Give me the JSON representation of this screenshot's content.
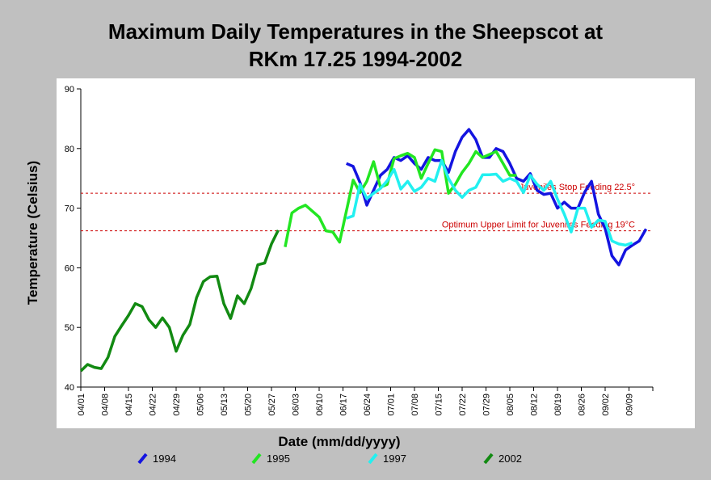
{
  "chart_data": {
    "type": "line",
    "title": "Maximum Daily Temperatures in the Sheepscot at",
    "subtitle": "RKm 17.25 1994-2002",
    "x_label": "Date (mm/dd/yyyy)",
    "y_label": "Temperature (Celsius)",
    "x": [
      0,
      2,
      4,
      6,
      8,
      10,
      12,
      14,
      16,
      18,
      20,
      22,
      24,
      26,
      28,
      30,
      32,
      34,
      36,
      38,
      40,
      42,
      44,
      46,
      48,
      50,
      52,
      54,
      56,
      58,
      60,
      62,
      64,
      66,
      68,
      70,
      72,
      74,
      76,
      78,
      80,
      82,
      84,
      86,
      88,
      90,
      92,
      94,
      96,
      98,
      100,
      102,
      104,
      106,
      108,
      110,
      112,
      114,
      116,
      118,
      120,
      122,
      124,
      126,
      128,
      130,
      132,
      134,
      136,
      138,
      140,
      142,
      144,
      146,
      148,
      150,
      152,
      154,
      156,
      158,
      160,
      162,
      164,
      166
    ],
    "xlim": [
      0,
      168
    ],
    "xticks": [
      {
        "value": 0,
        "label": "04/01"
      },
      {
        "value": 7,
        "label": "04/08"
      },
      {
        "value": 14,
        "label": "04/15"
      },
      {
        "value": 21,
        "label": "04/22"
      },
      {
        "value": 28,
        "label": "04/29"
      },
      {
        "value": 35,
        "label": "05/06"
      },
      {
        "value": 42,
        "label": "05/13"
      },
      {
        "value": 49,
        "label": "05/20"
      },
      {
        "value": 56,
        "label": "05/27"
      },
      {
        "value": 63,
        "label": "06/03"
      },
      {
        "value": 70,
        "label": "06/10"
      },
      {
        "value": 77,
        "label": "06/17"
      },
      {
        "value": 84,
        "label": "06/24"
      },
      {
        "value": 91,
        "label": "07/01"
      },
      {
        "value": 98,
        "label": "07/08"
      },
      {
        "value": 105,
        "label": "07/15"
      },
      {
        "value": 112,
        "label": "07/22"
      },
      {
        "value": 119,
        "label": "07/29"
      },
      {
        "value": 126,
        "label": "08/05"
      },
      {
        "value": 133,
        "label": "08/12"
      },
      {
        "value": 140,
        "label": "08/19"
      },
      {
        "value": 147,
        "label": "08/26"
      },
      {
        "value": 154,
        "label": "09/02"
      },
      {
        "value": 161,
        "label": "09/09"
      }
    ],
    "ylim": [
      40,
      90
    ],
    "yticks": [
      40,
      50,
      60,
      70,
      80,
      90
    ],
    "grid": false,
    "reference_lines": [
      {
        "value": 72.5,
        "label": "Juveniles Stop Feeding 22.5°",
        "color": "#cc0000"
      },
      {
        "value": 66.2,
        "label": "Optimum Upper Limit for Juveniles Feeding 19°C",
        "color": "#cc0000"
      }
    ],
    "series": [
      {
        "name": "1994",
        "color": "#1414e0",
        "values": [
          null,
          null,
          null,
          null,
          null,
          null,
          null,
          null,
          null,
          null,
          null,
          null,
          null,
          null,
          null,
          null,
          null,
          null,
          null,
          null,
          null,
          null,
          null,
          null,
          null,
          null,
          null,
          null,
          null,
          null,
          null,
          null,
          null,
          null,
          null,
          null,
          null,
          null,
          null,
          77.5,
          77,
          74.3,
          70.5,
          73,
          75.5,
          76.5,
          78.5,
          78,
          78.8,
          77.5,
          76.5,
          78.5,
          78,
          78,
          76,
          79.5,
          81.9,
          83.2,
          81.5,
          78.5,
          78.5,
          80,
          79.5,
          77.5,
          75,
          74.5,
          75.8,
          73,
          72.3,
          72.5,
          70,
          71,
          70,
          70,
          72.7,
          74.5,
          69,
          66.6,
          62,
          60.5,
          63,
          63.8,
          64.5,
          66.5
        ]
      },
      {
        "name": "1995",
        "color": "#22e622",
        "values": [
          null,
          null,
          null,
          null,
          null,
          null,
          null,
          null,
          null,
          null,
          null,
          null,
          null,
          null,
          null,
          null,
          null,
          null,
          null,
          null,
          null,
          null,
          null,
          null,
          null,
          null,
          null,
          null,
          null,
          null,
          63.5,
          69.2,
          70,
          70.5,
          69.5,
          68.5,
          66.2,
          66,
          64.3,
          69.5,
          74.7,
          72.6,
          74.5,
          77.8,
          73.5,
          74,
          78.3,
          78.8,
          79.2,
          78.5,
          75,
          77.5,
          79.8,
          79.5,
          72.5,
          74,
          76,
          77.5,
          79.5,
          78.5,
          79,
          79.5,
          77.5,
          75.5,
          75.5,
          null,
          null,
          null,
          null,
          null,
          null,
          null,
          null,
          null,
          null,
          null,
          null,
          null,
          null,
          null,
          null,
          null,
          null,
          null
        ]
      },
      {
        "name": "1997",
        "color": "#22f0f0",
        "values": [
          null,
          null,
          null,
          null,
          null,
          null,
          null,
          null,
          null,
          null,
          null,
          null,
          null,
          null,
          null,
          null,
          null,
          null,
          null,
          null,
          null,
          null,
          null,
          null,
          null,
          null,
          null,
          null,
          null,
          null,
          null,
          null,
          null,
          null,
          null,
          null,
          null,
          null,
          null,
          68.3,
          68.7,
          74,
          71.6,
          72.5,
          73.3,
          74.6,
          76.5,
          73.2,
          74.5,
          72.8,
          73.5,
          75,
          74.5,
          78,
          75,
          73,
          71.8,
          73,
          73.5,
          75.6,
          75.6,
          75.7,
          74.5,
          75,
          74.5,
          72.6,
          75.5,
          74,
          73,
          74.5,
          71.5,
          69,
          66,
          70,
          70,
          66.8,
          68,
          67.8,
          64.5,
          64,
          63.8,
          64.2,
          null,
          null
        ]
      },
      {
        "name": "2002",
        "color": "#128a12",
        "values": [
          42.7,
          43.8,
          43.3,
          43.1,
          45,
          48.5,
          50.3,
          52,
          54,
          53.5,
          51.3,
          50,
          51.6,
          50,
          46,
          48.7,
          50.5,
          55,
          57.7,
          58.5,
          58.6,
          54,
          51.5,
          55.3,
          54,
          56.5,
          60.5,
          60.8,
          64,
          66.3,
          null,
          null,
          null,
          null,
          null,
          null,
          null,
          null,
          null,
          null,
          null,
          null,
          null,
          null,
          null,
          null,
          null,
          null,
          null,
          null,
          null,
          null,
          null,
          null,
          null,
          null,
          null,
          null,
          null,
          null,
          null,
          null,
          null,
          null,
          null,
          null,
          null,
          null,
          null,
          null,
          null,
          null,
          null,
          null,
          null,
          null,
          null,
          null,
          null,
          null,
          null,
          null,
          null,
          null
        ]
      }
    ]
  }
}
